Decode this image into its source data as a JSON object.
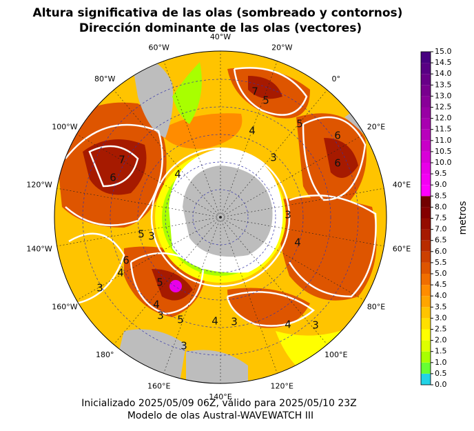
{
  "map": {
    "title": [
      "Altura significativa de las olas (sombreado y contornos)",
      "Dirección dominante de las olas (vectores)"
    ],
    "longitude_labels": [
      "40°W",
      "20°W",
      "0°",
      "20°E",
      "40°E",
      "60°E",
      "80°E",
      "100°E",
      "120°E",
      "140°E",
      "160°E",
      "180°",
      "160°W",
      "140°W",
      "120°W",
      "100°W",
      "80°W",
      "60°W"
    ],
    "contour_labels": [
      "7",
      "5",
      "5",
      "4",
      "6",
      "3",
      "6",
      "7",
      "6",
      "4",
      "4",
      "3",
      "5",
      "3",
      "6",
      "4",
      "5",
      "3",
      "5",
      "4",
      "3",
      "4",
      "3",
      "3",
      "4",
      "3"
    ],
    "colorbar": {
      "label": "metros",
      "ticks": [
        {
          "value": 0,
          "label": "0.0"
        },
        {
          "value": 0.5,
          "label": "0.5"
        },
        {
          "value": 1,
          "label": "1.0"
        },
        {
          "value": 1.5,
          "label": "1.5"
        },
        {
          "value": 2,
          "label": "2.0"
        },
        {
          "value": 2.5,
          "label": "2.5"
        },
        {
          "value": 3,
          "label": "3.0"
        },
        {
          "value": 3.5,
          "label": "3.5"
        },
        {
          "value": 4,
          "label": "4.0"
        },
        {
          "value": 4.5,
          "label": "4.5"
        },
        {
          "value": 5,
          "label": "5.0"
        },
        {
          "value": 5.5,
          "label": "5.5"
        },
        {
          "value": 6,
          "label": "6.0"
        },
        {
          "value": 6.5,
          "label": "6.5"
        },
        {
          "value": 7,
          "label": "7.0"
        },
        {
          "value": 7.5,
          "label": "7.5"
        },
        {
          "value": 8,
          "label": "8.0"
        },
        {
          "value": 8.5,
          "label": "8.5"
        },
        {
          "value": 9,
          "label": "9.0"
        },
        {
          "value": 9.5,
          "label": "9.5"
        },
        {
          "value": 10,
          "label": "10.0"
        },
        {
          "value": 10.5,
          "label": "10.5"
        },
        {
          "value": 11,
          "label": "11.0"
        },
        {
          "value": 11.5,
          "label": "11.5"
        },
        {
          "value": 12,
          "label": "12.0"
        },
        {
          "value": 12.5,
          "label": "12.5"
        },
        {
          "value": 13,
          "label": "13.0"
        },
        {
          "value": 13.5,
          "label": "13.5"
        },
        {
          "value": 14,
          "label": "14.0"
        },
        {
          "value": 14.5,
          "label": "14.5"
        },
        {
          "value": 15,
          "label": "15.0"
        }
      ],
      "colors": [
        "#22d3e6",
        "#66ff33",
        "#a8ff00",
        "#ddff00",
        "#ffff00",
        "#ffe000",
        "#ffc400",
        "#ffa500",
        "#ff8c00",
        "#f06e00",
        "#de5500",
        "#cc4000",
        "#b82c00",
        "#a61a00",
        "#940c00",
        "#840000",
        "#720000",
        "#ff00ff",
        "#f400f4",
        "#e800e8",
        "#d800d8",
        "#c800c8",
        "#b800bc",
        "#a800b0",
        "#9800a4",
        "#880098",
        "#78008e",
        "#680088",
        "#580084",
        "#480080"
      ]
    },
    "footer": [
      "Inicializado 2025/05/09 06Z, válido para 2025/05/10 23Z",
      "Modelo de olas Austral-WAVEWATCH III"
    ]
  }
}
